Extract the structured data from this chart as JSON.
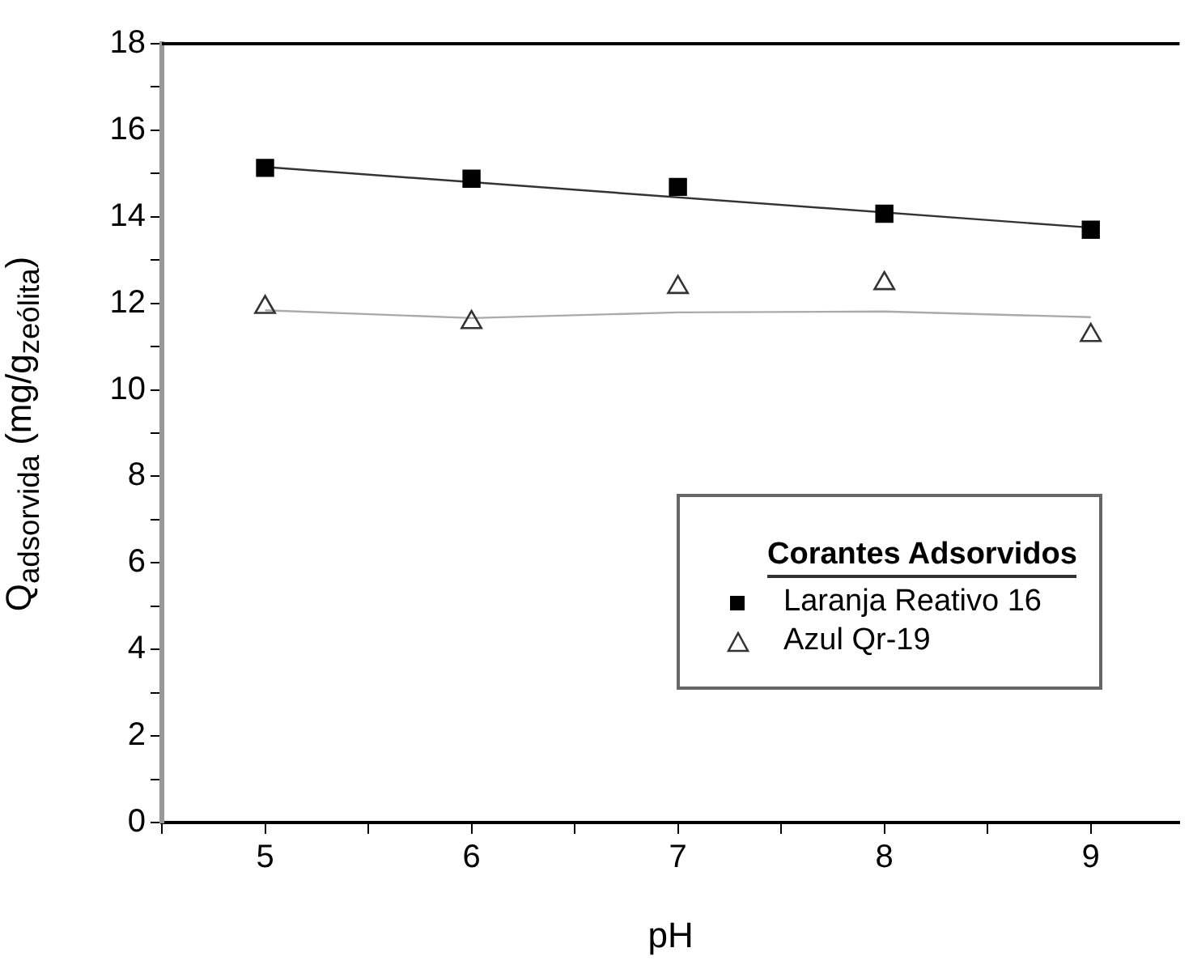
{
  "chart_data": {
    "type": "scatter",
    "xlabel": "pH",
    "ylabel": "Q$_{adsorvida}$ (mg/g$_{zeólita}$)",
    "legend_title": "Corantes Adsorvidos",
    "legend": "bottom right",
    "grid": false,
    "xlim": [
      4.5,
      9.43
    ],
    "xticks": [
      {
        "value": 4.5,
        "label": null
      },
      5,
      {
        "value": 5.5,
        "label": null
      },
      6,
      {
        "value": 6.5,
        "label": null
      },
      7,
      {
        "value": 7.5,
        "label": null
      },
      8,
      {
        "value": 8.5,
        "label": null
      },
      9
    ],
    "ylim": [
      0,
      18
    ],
    "yticks": [
      0,
      {
        "value": 1,
        "label": null
      },
      2,
      {
        "value": 3,
        "label": null
      },
      4,
      {
        "value": 5,
        "label": null
      },
      6,
      {
        "value": 7,
        "label": null
      },
      8,
      {
        "value": 9,
        "label": null
      },
      10,
      {
        "value": 11,
        "label": null
      },
      12,
      {
        "value": 13,
        "label": null
      },
      14,
      {
        "value": 15,
        "label": null
      },
      16,
      {
        "value": 17,
        "label": null
      },
      18
    ],
    "x": [
      5,
      6,
      7,
      8,
      9
    ],
    "series": [
      {
        "name": "Laranja Reativo 16",
        "color": "#000000",
        "marker": "square",
        "values": [
          15.13,
          14.88,
          14.69,
          14.07,
          13.7
        ]
      },
      {
        "name": "Azul Qr-19",
        "color": "#333333",
        "marker": "triangle",
        "values": [
          11.91,
          11.56,
          12.37,
          12.46,
          11.26
        ]
      },
      {
        "type": "line",
        "color": "#333333",
        "marker": "none",
        "x": [
          5,
          9
        ],
        "values": [
          15.15,
          13.75
        ]
      },
      {
        "type": "line",
        "color": "#aaaaaa",
        "marker": "none",
        "x": [
          5,
          6,
          7,
          8,
          9
        ],
        "values": [
          11.84,
          11.66,
          11.79,
          11.81,
          11.68
        ]
      }
    ]
  }
}
